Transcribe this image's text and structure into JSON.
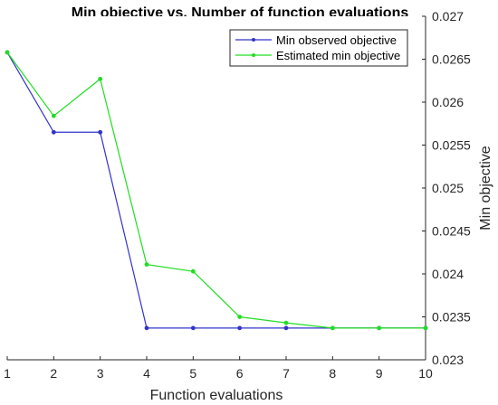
{
  "chart_data": {
    "type": "line",
    "title": "Min objective vs. Number of function evaluations",
    "xlabel": "Function evaluations",
    "ylabel": "Min objective",
    "x": [
      1,
      2,
      3,
      4,
      5,
      6,
      7,
      8,
      9,
      10
    ],
    "xlim": [
      1,
      10
    ],
    "ylim": [
      0.023,
      0.027
    ],
    "y_axis_position": "right",
    "xticks": [
      1,
      2,
      3,
      4,
      5,
      6,
      7,
      8,
      9,
      10
    ],
    "xtick_labels": [
      "1",
      "2",
      "3",
      "4",
      "5",
      "6",
      "7",
      "8",
      "9",
      "10"
    ],
    "yticks": [
      0.023,
      0.0235,
      0.024,
      0.0245,
      0.025,
      0.0255,
      0.026,
      0.0265,
      0.027
    ],
    "ytick_labels": [
      "0.023",
      "0.0235",
      "0.024",
      "0.0245",
      "0.025",
      "0.0255",
      "0.026",
      "0.0265",
      "0.027"
    ],
    "grid": false,
    "legend_position": "top-right",
    "series": [
      {
        "name": "Min observed objective",
        "color": "#3333cc",
        "marker": "circle",
        "values": [
          0.02658,
          0.02565,
          0.02565,
          0.02337,
          0.02337,
          0.02337,
          0.02337,
          0.02337,
          0.02337,
          0.02337
        ]
      },
      {
        "name": "Estimated min objective",
        "color": "#22dd22",
        "marker": "circle",
        "values": [
          0.02658,
          0.02584,
          0.02627,
          0.02411,
          0.02403,
          0.0235,
          0.02343,
          0.02337,
          0.02337,
          0.02337
        ]
      }
    ]
  }
}
